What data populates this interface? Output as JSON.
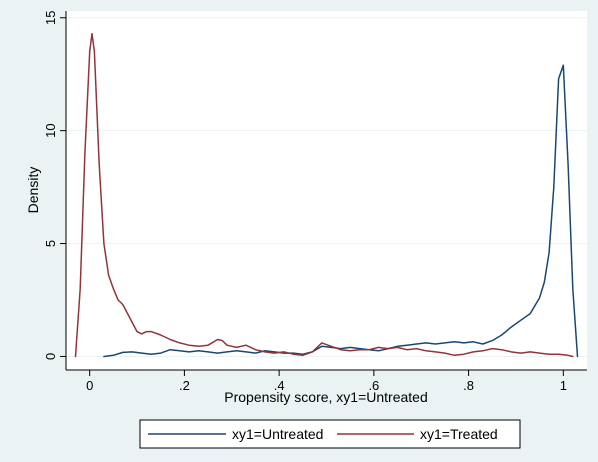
{
  "chart_data": {
    "type": "line",
    "xlabel": "Propensity score, xy1=Untreated",
    "ylabel": "Density",
    "xlim": [
      -0.05,
      1.05
    ],
    "ylim": [
      -0.6,
      15.3
    ],
    "x_ticks": [
      0,
      0.2,
      0.4,
      0.6,
      0.8,
      1
    ],
    "x_tick_labels": [
      "0",
      ".2",
      ".4",
      ".6",
      ".8",
      "1"
    ],
    "y_ticks": [
      0,
      5,
      10,
      15
    ],
    "y_tick_labels": [
      "0",
      "5",
      "10",
      "15"
    ],
    "grid": "horizontal",
    "legend_position": "bottom",
    "colors": {
      "background": "#eaf2f3",
      "plot_background": "#ffffff",
      "grid": "#eaf2f3",
      "untreated": "#1a476f",
      "treated": "#90353b"
    },
    "series": [
      {
        "name": "xy1=Untreated",
        "color": "#1a476f",
        "x": [
          0.03,
          0.05,
          0.07,
          0.09,
          0.11,
          0.13,
          0.15,
          0.17,
          0.19,
          0.21,
          0.23,
          0.25,
          0.27,
          0.29,
          0.31,
          0.33,
          0.35,
          0.37,
          0.39,
          0.41,
          0.43,
          0.45,
          0.47,
          0.49,
          0.51,
          0.53,
          0.55,
          0.57,
          0.59,
          0.61,
          0.63,
          0.65,
          0.67,
          0.69,
          0.71,
          0.73,
          0.75,
          0.77,
          0.79,
          0.81,
          0.83,
          0.85,
          0.87,
          0.89,
          0.91,
          0.93,
          0.95,
          0.96,
          0.97,
          0.98,
          0.99,
          1.0,
          1.01,
          1.02,
          1.03
        ],
        "y": [
          0.0,
          0.05,
          0.18,
          0.2,
          0.15,
          0.1,
          0.15,
          0.3,
          0.25,
          0.2,
          0.25,
          0.2,
          0.15,
          0.2,
          0.25,
          0.2,
          0.15,
          0.25,
          0.2,
          0.15,
          0.15,
          0.1,
          0.2,
          0.45,
          0.4,
          0.35,
          0.4,
          0.35,
          0.3,
          0.25,
          0.35,
          0.45,
          0.5,
          0.55,
          0.6,
          0.55,
          0.6,
          0.65,
          0.6,
          0.65,
          0.55,
          0.7,
          0.95,
          1.3,
          1.6,
          1.9,
          2.6,
          3.3,
          4.6,
          7.5,
          12.3,
          12.9,
          8.5,
          3.0,
          0.0
        ]
      },
      {
        "name": "xy1=Treated",
        "color": "#90353b",
        "x": [
          -0.03,
          -0.02,
          -0.01,
          0.0,
          0.005,
          0.01,
          0.02,
          0.03,
          0.04,
          0.05,
          0.06,
          0.07,
          0.08,
          0.09,
          0.1,
          0.11,
          0.12,
          0.13,
          0.15,
          0.17,
          0.19,
          0.21,
          0.23,
          0.25,
          0.27,
          0.28,
          0.29,
          0.31,
          0.33,
          0.35,
          0.37,
          0.39,
          0.41,
          0.43,
          0.45,
          0.47,
          0.49,
          0.51,
          0.53,
          0.55,
          0.57,
          0.59,
          0.61,
          0.63,
          0.65,
          0.67,
          0.69,
          0.71,
          0.73,
          0.75,
          0.77,
          0.79,
          0.81,
          0.83,
          0.85,
          0.87,
          0.89,
          0.91,
          0.93,
          0.95,
          0.97,
          0.99,
          1.01,
          1.02
        ],
        "y": [
          0.0,
          3.0,
          9.0,
          13.5,
          14.3,
          13.5,
          8.5,
          5.0,
          3.6,
          3.0,
          2.5,
          2.3,
          1.9,
          1.5,
          1.1,
          1.0,
          1.1,
          1.1,
          0.95,
          0.75,
          0.6,
          0.5,
          0.45,
          0.5,
          0.75,
          0.7,
          0.5,
          0.4,
          0.5,
          0.3,
          0.2,
          0.15,
          0.2,
          0.1,
          0.05,
          0.2,
          0.6,
          0.45,
          0.3,
          0.25,
          0.3,
          0.3,
          0.4,
          0.35,
          0.4,
          0.3,
          0.35,
          0.25,
          0.2,
          0.15,
          0.05,
          0.1,
          0.2,
          0.25,
          0.35,
          0.3,
          0.2,
          0.15,
          0.2,
          0.15,
          0.1,
          0.1,
          0.05,
          0.0
        ]
      }
    ]
  }
}
